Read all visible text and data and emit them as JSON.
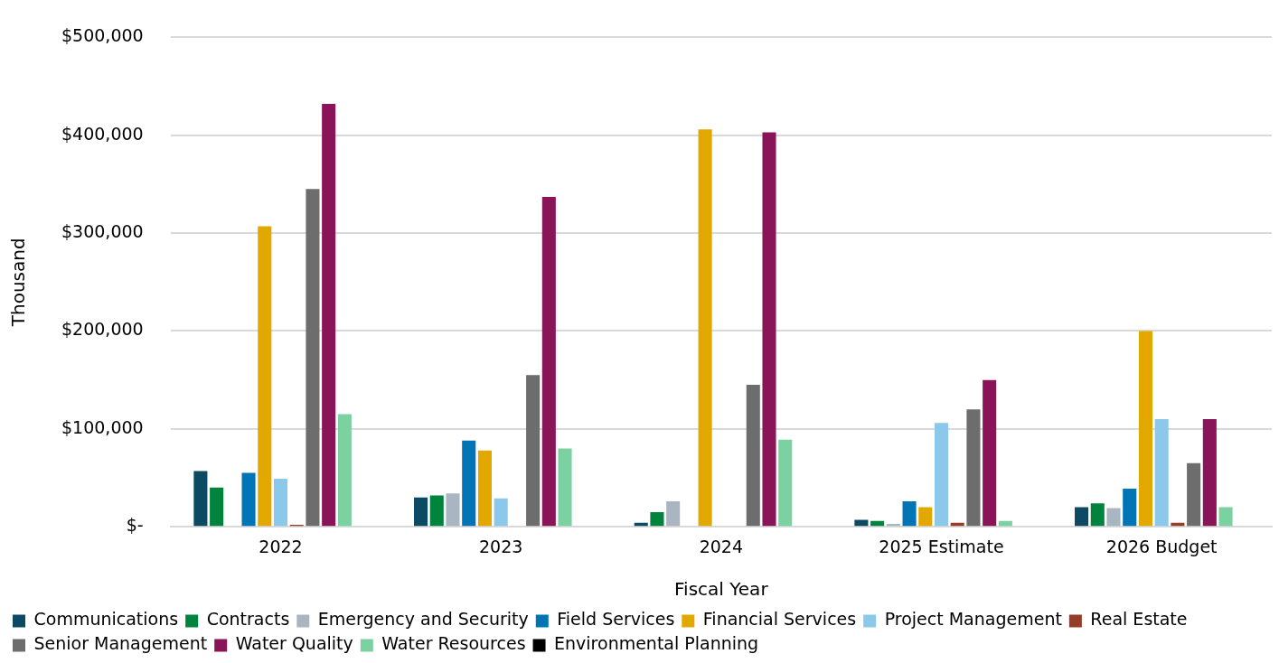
{
  "chart_data": {
    "type": "bar",
    "xlabel": "Fiscal Year",
    "ylabel": "Thousand",
    "categories": [
      "2022",
      "2023",
      "2024",
      "2025 Estimate",
      "2026 Budget"
    ],
    "series": [
      {
        "name": "Communications",
        "color": "#0b4a62",
        "values": [
          57000,
          30000,
          4000,
          7000,
          20000
        ]
      },
      {
        "name": "Contracts",
        "color": "#00843d",
        "values": [
          40000,
          32000,
          15000,
          6000,
          24000
        ]
      },
      {
        "name": "Emergency and Security",
        "color": "#a9b6c1",
        "values": [
          0,
          34000,
          26000,
          3000,
          19000
        ]
      },
      {
        "name": "Field Services",
        "color": "#0074b4",
        "values": [
          55000,
          88000,
          0,
          26000,
          39000
        ]
      },
      {
        "name": "Financial Services",
        "color": "#e2a800",
        "values": [
          307000,
          78000,
          406000,
          20000,
          200000
        ]
      },
      {
        "name": "Project Management",
        "color": "#8bc8ea",
        "values": [
          49000,
          29000,
          0,
          106000,
          110000
        ]
      },
      {
        "name": "Real Estate",
        "color": "#963d2a",
        "values": [
          2000,
          0,
          0,
          4000,
          4000
        ]
      },
      {
        "name": "Senior Management",
        "color": "#6d6d6d",
        "values": [
          345000,
          155000,
          145000,
          120000,
          65000
        ]
      },
      {
        "name": "Water Quality",
        "color": "#8a1458",
        "values": [
          432000,
          337000,
          403000,
          150000,
          110000
        ]
      },
      {
        "name": "Water Resources",
        "color": "#7bd2a0",
        "values": [
          115000,
          80000,
          89000,
          6000,
          20000
        ]
      },
      {
        "name": "Environmental Planning",
        "color": "#000000",
        "values": [
          0,
          0,
          0,
          0,
          0
        ]
      }
    ],
    "ylim": [
      0,
      500000
    ],
    "yticks": [
      {
        "value": 0,
        "label": "$-"
      },
      {
        "value": 100000,
        "label": "$100,000"
      },
      {
        "value": 200000,
        "label": "$200,000"
      },
      {
        "value": 300000,
        "label": "$300,000"
      },
      {
        "value": 400000,
        "label": "$400,000"
      },
      {
        "value": 500000,
        "label": "$500,000"
      }
    ],
    "grid": "y",
    "legend": "bottom"
  }
}
